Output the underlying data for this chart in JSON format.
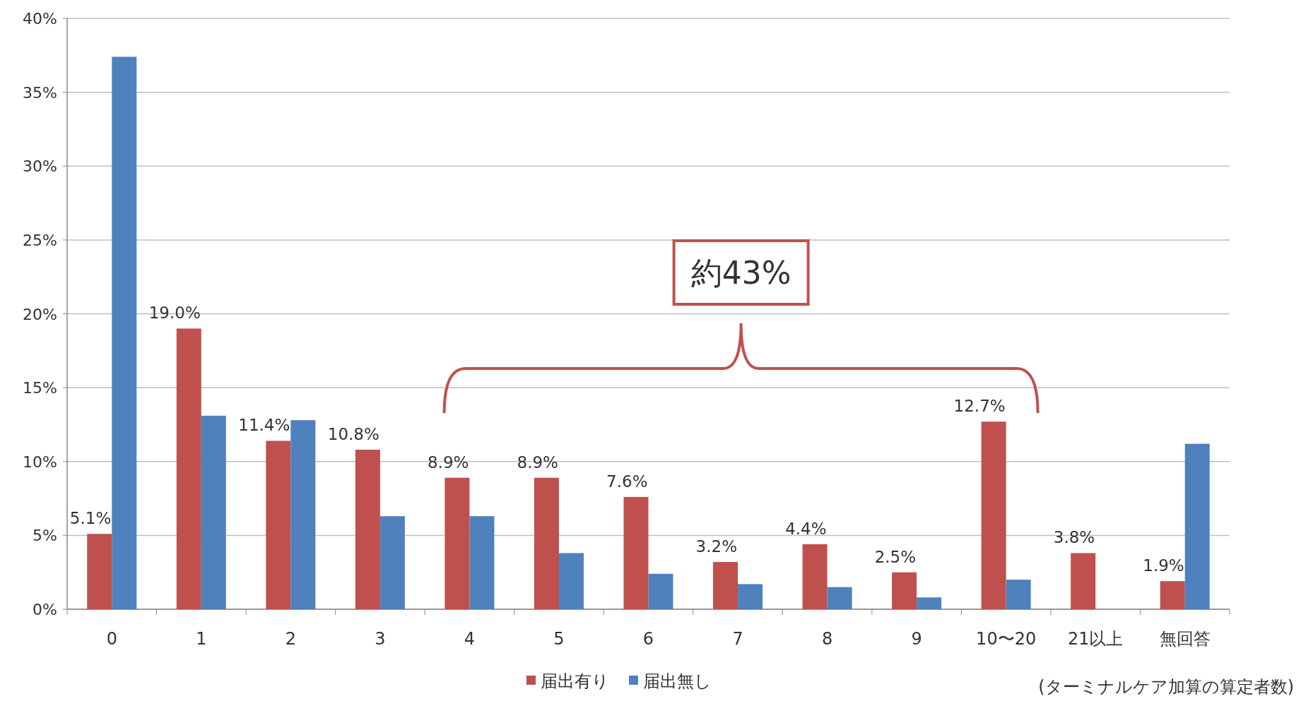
{
  "chart_data": {
    "type": "bar",
    "categories": [
      "0",
      "1",
      "2",
      "3",
      "4",
      "5",
      "6",
      "7",
      "8",
      "9",
      "10〜20",
      "21以上",
      "無回答"
    ],
    "series": [
      {
        "name": "届出有り",
        "color": "#c0504d",
        "values": [
          5.1,
          19.0,
          11.4,
          10.8,
          8.9,
          8.9,
          7.6,
          3.2,
          4.4,
          2.5,
          12.7,
          3.8,
          1.9
        ],
        "value_labels": [
          "5.1%",
          "19.0%",
          "11.4%",
          "10.8%",
          "8.9%",
          "8.9%",
          "7.6%",
          "3.2%",
          "4.4%",
          "2.5%",
          "12.7%",
          "3.8%",
          "1.9%"
        ]
      },
      {
        "name": "届出無し",
        "color": "#4f81bd",
        "values": [
          37.4,
          13.1,
          12.8,
          6.3,
          6.3,
          3.8,
          2.4,
          1.7,
          1.5,
          0.8,
          2.0,
          0,
          11.2
        ]
      }
    ],
    "ylim": [
      0,
      40
    ],
    "yticks": [
      {
        "value": 0,
        "label": "0%"
      },
      {
        "value": 5,
        "label": "5%"
      },
      {
        "value": 10,
        "label": "10%"
      },
      {
        "value": 15,
        "label": "15%"
      },
      {
        "value": 20,
        "label": "20%"
      },
      {
        "value": 25,
        "label": "25%"
      },
      {
        "value": 30,
        "label": "30%"
      },
      {
        "value": 35,
        "label": "35%"
      },
      {
        "value": 40,
        "label": "40%"
      }
    ],
    "grid": "y",
    "legend": "bottom",
    "xlabel": "(ターミナルケア加算の算定者数)",
    "annotations": [
      "約43%"
    ]
  }
}
